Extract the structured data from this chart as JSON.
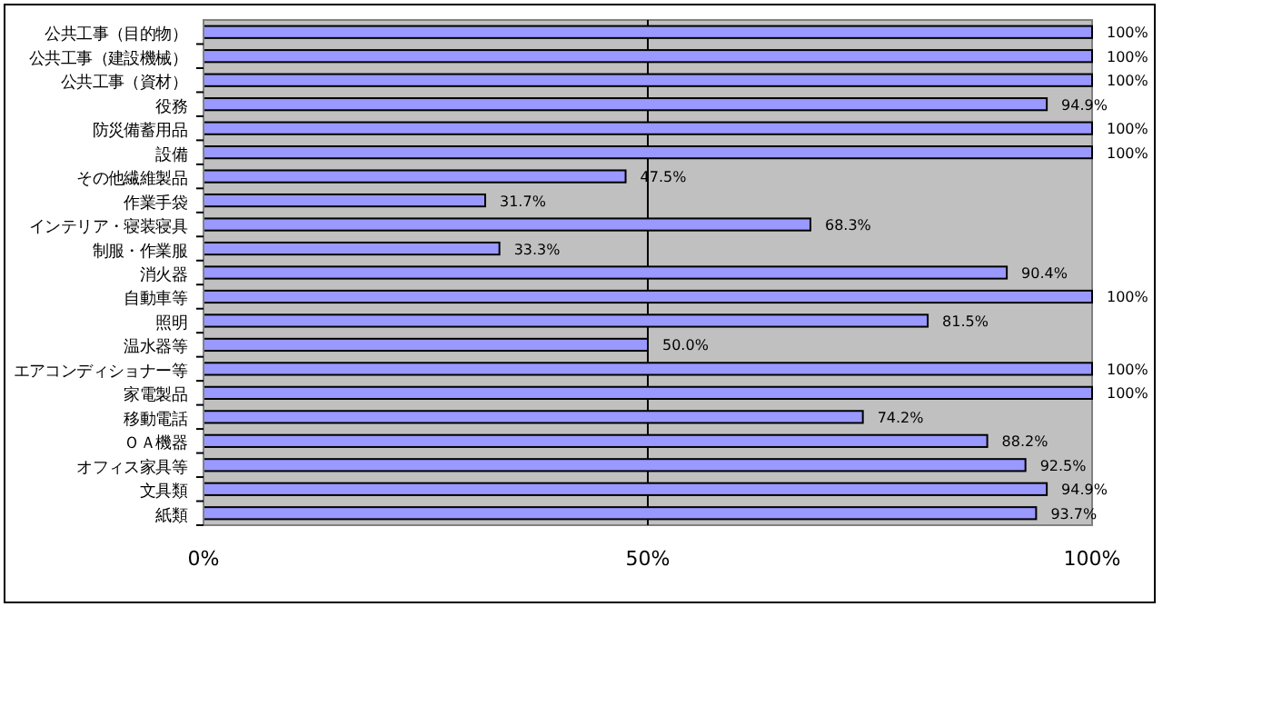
{
  "chart_data": {
    "type": "bar",
    "orientation": "horizontal",
    "categories": [
      "公共工事（目的物）",
      "公共工事（建設機械）",
      "公共工事（資材）",
      "役務",
      "防災備蓄用品",
      "設備",
      "その他繊維製品",
      "作業手袋",
      "インテリア・寝装寝具",
      "制服・作業服",
      "消火器",
      "自動車等",
      "照明",
      "温水器等",
      "エアコンディショナー等",
      "家電製品",
      "移動電話",
      "ＯＡ機器",
      "オフィス家具等",
      "文具類",
      "紙類"
    ],
    "values": [
      100,
      100,
      100,
      94.9,
      100,
      100,
      47.5,
      31.7,
      68.3,
      33.3,
      90.4,
      100,
      81.5,
      50.0,
      100,
      100,
      74.2,
      88.2,
      92.5,
      94.9,
      93.7
    ],
    "value_labels": [
      "100%",
      "100%",
      "100%",
      "94.9%",
      "100%",
      "100%",
      "47.5%",
      "31.7%",
      "68.3%",
      "33.3%",
      "90.4%",
      "100%",
      "81.5%",
      "50.0%",
      "100%",
      "100%",
      "74.2%",
      "88.2%",
      "92.5%",
      "94.9%",
      "93.7%"
    ],
    "color": "#9999ff",
    "xlim": [
      0,
      100
    ],
    "xticks": [
      {
        "value": 0,
        "label": "0%"
      },
      {
        "value": 50,
        "label": "50%"
      },
      {
        "value": 100,
        "label": "100%"
      }
    ],
    "grid": "x"
  }
}
